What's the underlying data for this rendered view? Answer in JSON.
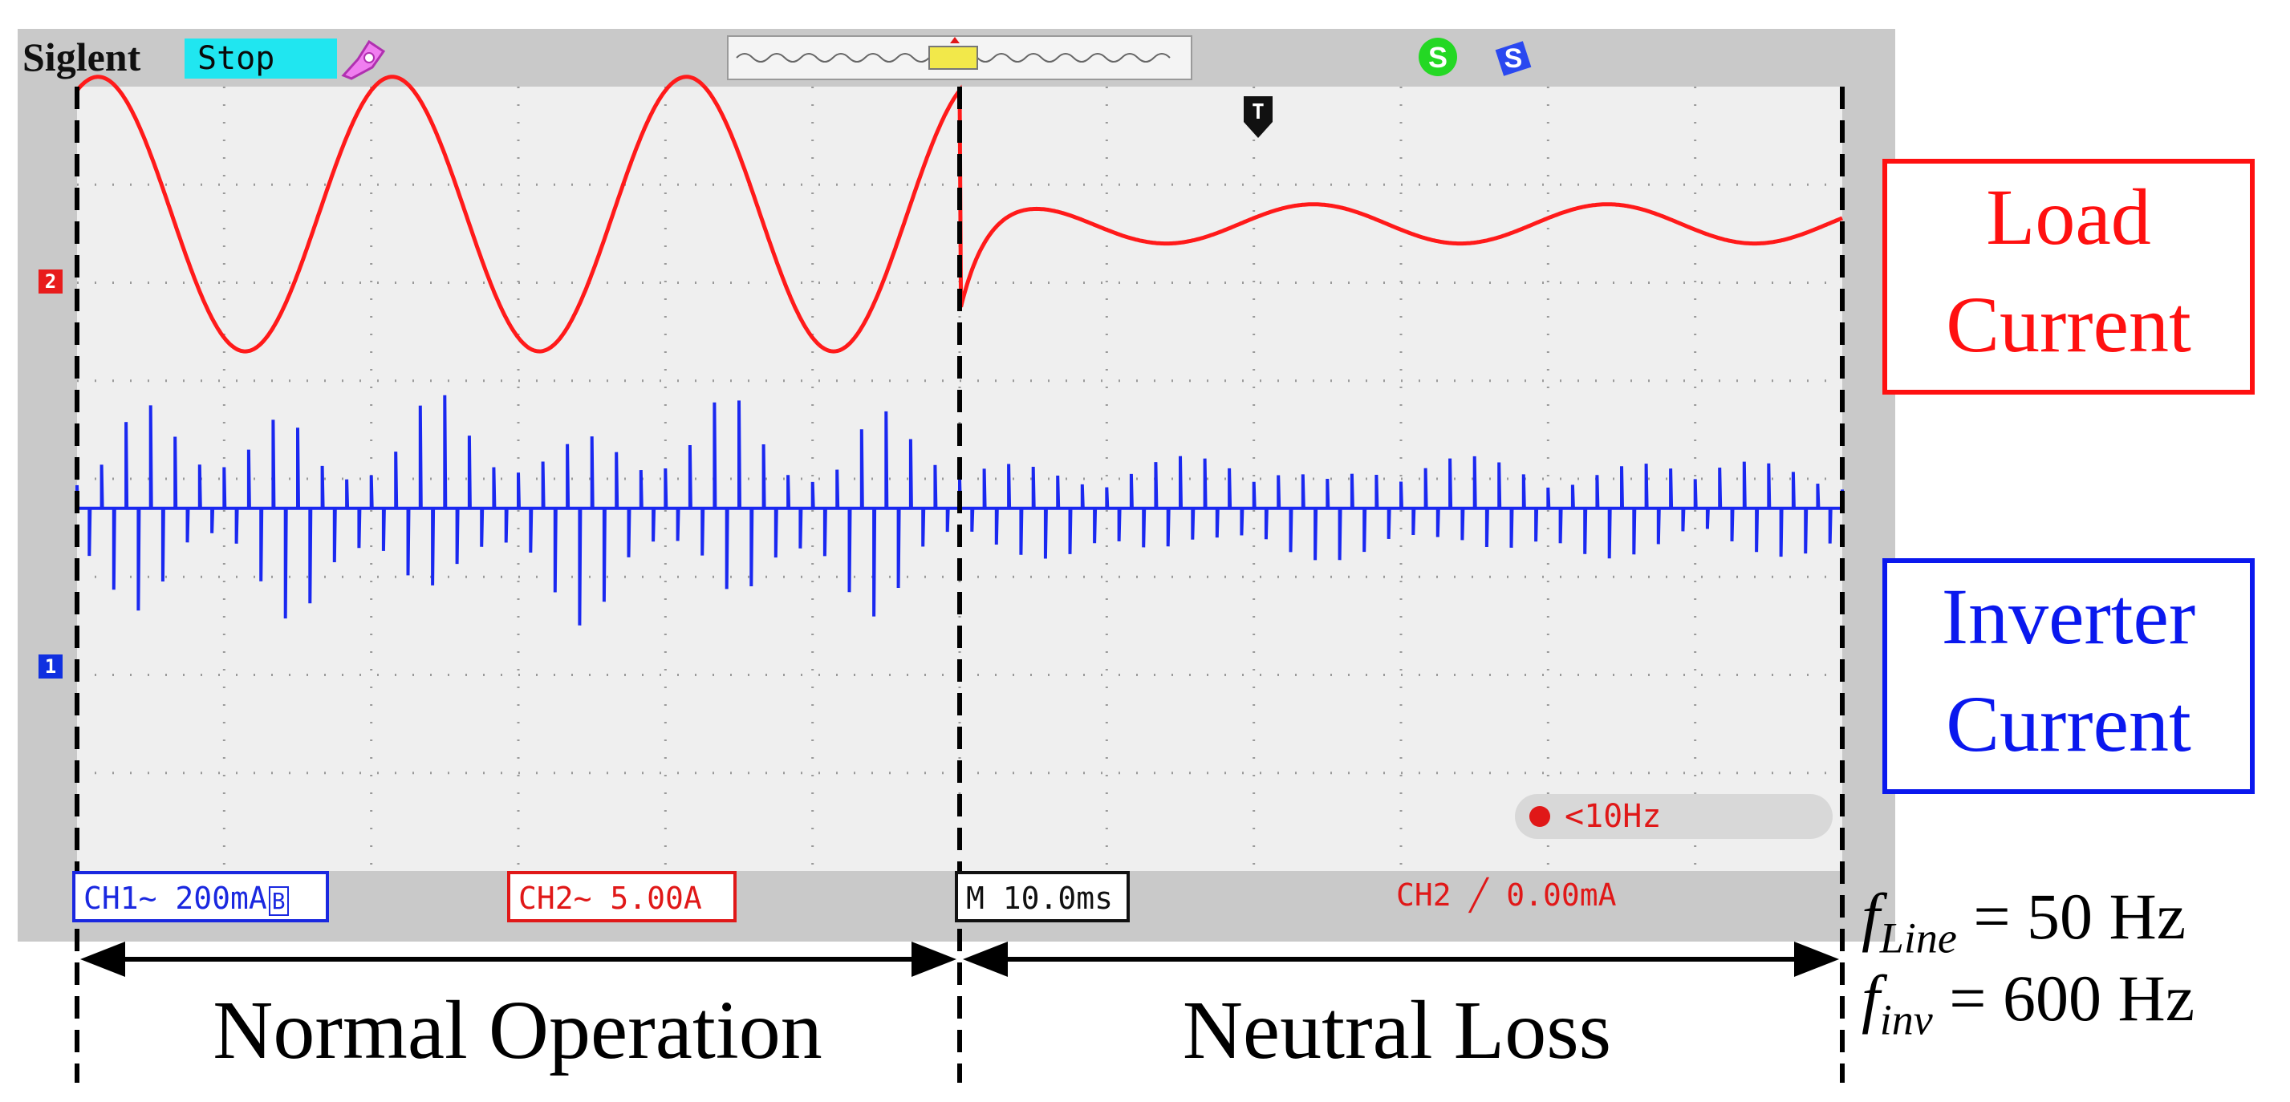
{
  "scope": {
    "brand": "Siglent",
    "run_state": "Stop",
    "channel_markers": {
      "ch1": "1",
      "ch2": "2"
    },
    "trigger_marker": "T",
    "ch1_readout": "CH1~ 200mA",
    "ch1_bw_flag": "B",
    "ch2_readout": "CH2~ 5.00A",
    "timebase": "M 10.0ms",
    "trigger_readout": "CH2 ╱ 0.00mA",
    "frequency_readout": "<10Hz",
    "icons": [
      "probe-icon",
      "save-icon",
      "usb-icon",
      "trigger-position-icon"
    ]
  },
  "labels": {
    "load": [
      "Load",
      "Current"
    ],
    "inverter": [
      "Inverter",
      "Current"
    ],
    "normal_operation": "Normal Operation",
    "neutral_loss": "Neutral Loss",
    "f_line_symbol": "f",
    "f_line_sub": "Line",
    "f_line_value": "= 50 Hz",
    "f_inv_symbol": "f",
    "f_inv_sub": "inv",
    "f_inv_value": "= 600 Hz"
  },
  "colors": {
    "load_trace": "#ff1a1a",
    "inverter_trace": "#1a28f0",
    "screen": "#efefef",
    "frame": "#c9c9c9",
    "status": "#20e6f0"
  },
  "chart_data": {
    "type": "line",
    "x_unit": "ms",
    "time_per_division_ms": 10,
    "divisions": 12,
    "event_time_ms": 60,
    "series": [
      {
        "name": "Load Current",
        "channel": "CH2",
        "volts_per_div": "5.00A",
        "segments": [
          {
            "t_start_ms": 0,
            "t_end_ms": 60,
            "frequency_hz": 50,
            "amplitude_div": 1.4
          },
          {
            "t_start_ms": 60,
            "t_end_ms": 120,
            "frequency_hz": 50,
            "amplitude_div": 0.2,
            "offset_div": -0.1
          }
        ]
      },
      {
        "name": "Inverter Current",
        "channel": "CH1",
        "volts_per_div": "200mA",
        "segments": [
          {
            "t_start_ms": 0,
            "t_end_ms": 60,
            "carrier_hz": 600,
            "peak_div": 2.0
          },
          {
            "t_start_ms": 60,
            "t_end_ms": 120,
            "carrier_hz": 600,
            "peak_div": 0.9
          }
        ]
      }
    ]
  }
}
